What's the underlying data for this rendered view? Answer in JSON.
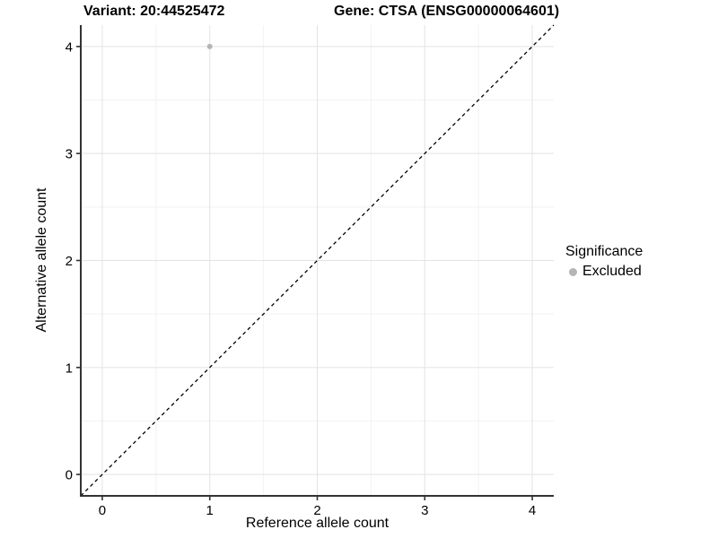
{
  "header": {
    "title_left": "Variant: 20:44525472",
    "title_right": "Gene: CTSA (ENSG00000064601)"
  },
  "colors": {
    "background": "#ffffff",
    "grid_major": "#e3e3e3",
    "grid_minor": "#f2f2f2",
    "axis": "#333333",
    "tick_text": "#000000",
    "point_gray": "#b5b5b5"
  },
  "chart_data": {
    "type": "scatter",
    "title_left": "Variant: 20:44525472",
    "title_right": "Gene: CTSA (ENSG00000064601)",
    "xlabel": "Reference allele count",
    "ylabel": "Alternative allele count",
    "xlim": [
      -0.2,
      4.2
    ],
    "ylim": [
      -0.2,
      4.2
    ],
    "x_ticks": [
      0,
      1,
      2,
      3,
      4
    ],
    "y_ticks": [
      0,
      1,
      2,
      3,
      4
    ],
    "grid": {
      "major": true,
      "minor": true
    },
    "series": [
      {
        "name": "Excluded",
        "color": "#b5b5b5",
        "points": [
          {
            "x": 1,
            "y": 4
          }
        ]
      }
    ],
    "reference_line": {
      "equation": "y = x",
      "style": "dashed",
      "color": "#000000",
      "from": {
        "x": -0.2,
        "y": -0.2
      },
      "to": {
        "x": 4.2,
        "y": 4.2
      }
    },
    "legend": {
      "position": "right",
      "title": "Significance",
      "entries": [
        {
          "label": "Excluded",
          "color": "#b5b5b5"
        }
      ]
    }
  }
}
